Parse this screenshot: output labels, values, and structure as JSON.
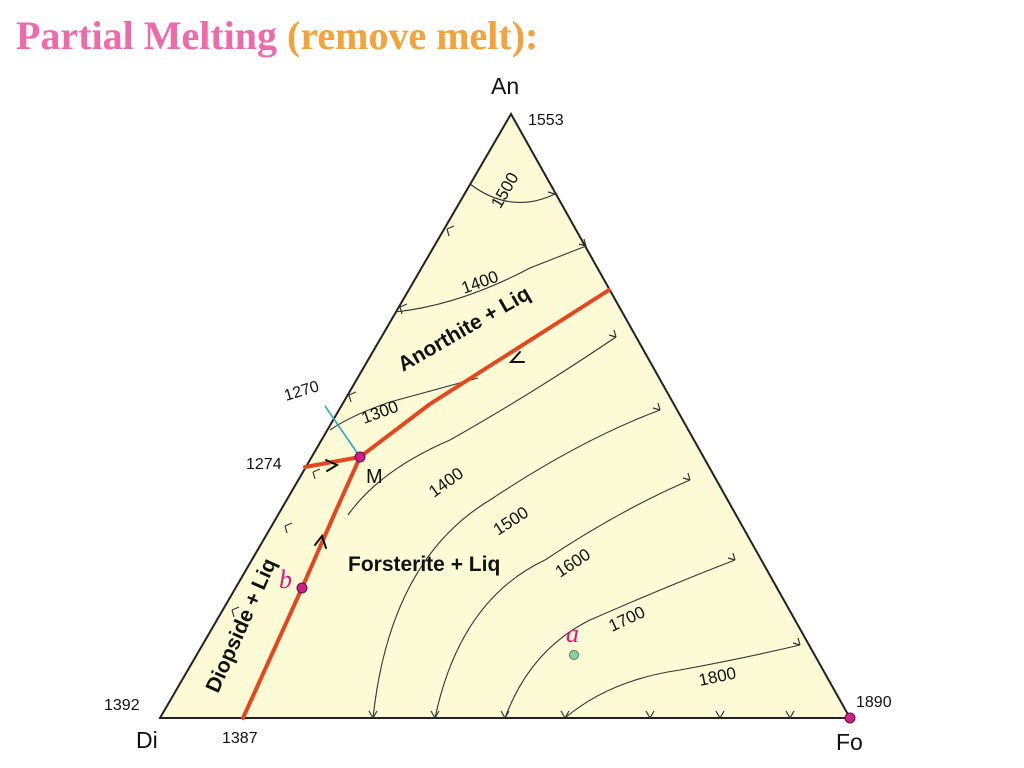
{
  "title": {
    "part1": "Partial Melting ",
    "part2": "(remove melt):"
  },
  "vertices": {
    "an": "An",
    "di": "Di",
    "fo": "Fo"
  },
  "temps": {
    "an_melt": "1553",
    "di_melt": "1392",
    "fo_melt": "1890",
    "di_an_eutectic": "1270",
    "peritectic": "1274",
    "di_fo_eutectic": "1387"
  },
  "fields": {
    "anorthite": "Anorthite + Liq",
    "forsterite": "Forsterite + Liq",
    "diopside": "Diopside + Liq"
  },
  "points": {
    "m": "M",
    "a": "a",
    "b": "b"
  },
  "contours": {
    "c1500_an": "1500",
    "c1400_an": "1400",
    "c1300": "1300",
    "c1400_fo": "1400",
    "c1500_fo": "1500",
    "c1600": "1600",
    "c1700": "1700",
    "c1800": "1800"
  },
  "colors": {
    "triangle_fill": "#fdfbd6",
    "cotectic": "#e4461f",
    "point": "#cc2288",
    "point_a": "#8fd0a0",
    "tieline": "#2aa8c8"
  }
}
